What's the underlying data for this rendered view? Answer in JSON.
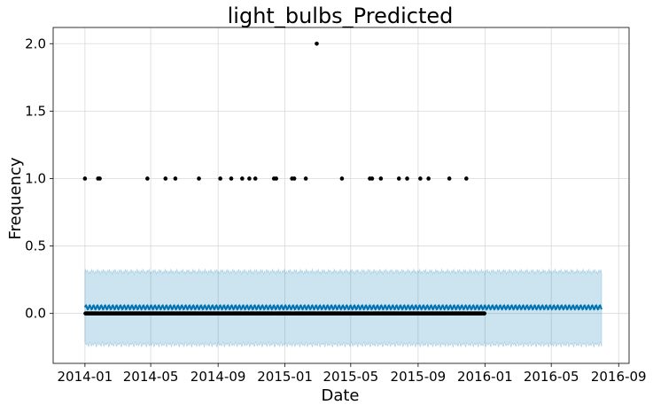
{
  "chart_data": {
    "type": "scatter",
    "title": "light_bulbs_Predicted",
    "xlabel": "Date",
    "ylabel": "Frequency",
    "xlim": [
      "2013-11-04",
      "2016-09-20"
    ],
    "ylim": [
      -0.37,
      2.12
    ],
    "x_ticks": [
      "2014-01",
      "2014-05",
      "2014-09",
      "2015-01",
      "2015-05",
      "2015-09",
      "2016-01",
      "2016-05",
      "2016-09"
    ],
    "y_ticks": [
      0.0,
      0.5,
      1.0,
      1.5,
      2.0
    ],
    "y_tick_labels": [
      "0.0",
      "0.5",
      "1.0",
      "1.5",
      "2.0"
    ],
    "grid": true,
    "colors": {
      "observed": "#000000",
      "forecast_line": "#0072B2",
      "uncertainty_band": "#0072B2",
      "grid": "#d9d9d9"
    },
    "observed": {
      "start": "2014-01-01",
      "end": "2015-12-31",
      "baseline_value": 0,
      "nonzero": [
        {
          "date": "2014-01-01",
          "y": 1
        },
        {
          "date": "2014-01-25",
          "y": 1
        },
        {
          "date": "2014-01-28",
          "y": 1
        },
        {
          "date": "2014-04-25",
          "y": 1
        },
        {
          "date": "2014-05-28",
          "y": 1
        },
        {
          "date": "2014-06-15",
          "y": 1
        },
        {
          "date": "2014-07-28",
          "y": 1
        },
        {
          "date": "2014-09-05",
          "y": 1
        },
        {
          "date": "2014-09-25",
          "y": 1
        },
        {
          "date": "2014-10-15",
          "y": 1
        },
        {
          "date": "2014-10-28",
          "y": 1
        },
        {
          "date": "2014-11-08",
          "y": 1
        },
        {
          "date": "2014-12-12",
          "y": 1
        },
        {
          "date": "2014-12-16",
          "y": 1
        },
        {
          "date": "2015-01-14",
          "y": 1
        },
        {
          "date": "2015-01-18",
          "y": 1
        },
        {
          "date": "2015-02-08",
          "y": 1
        },
        {
          "date": "2015-02-28",
          "y": 2
        },
        {
          "date": "2015-04-15",
          "y": 1
        },
        {
          "date": "2015-06-05",
          "y": 1
        },
        {
          "date": "2015-06-09",
          "y": 1
        },
        {
          "date": "2015-06-25",
          "y": 1
        },
        {
          "date": "2015-07-28",
          "y": 1
        },
        {
          "date": "2015-08-12",
          "y": 1
        },
        {
          "date": "2015-09-05",
          "y": 1
        },
        {
          "date": "2015-09-20",
          "y": 1
        },
        {
          "date": "2015-10-28",
          "y": 1
        },
        {
          "date": "2015-11-28",
          "y": 1
        }
      ]
    },
    "forecast": {
      "start": "2014-01-01",
      "end": "2016-08-01",
      "trend": 0.045,
      "weekly_amplitude": 0.015,
      "lower_bound": -0.23,
      "upper_bound": 0.31
    }
  }
}
